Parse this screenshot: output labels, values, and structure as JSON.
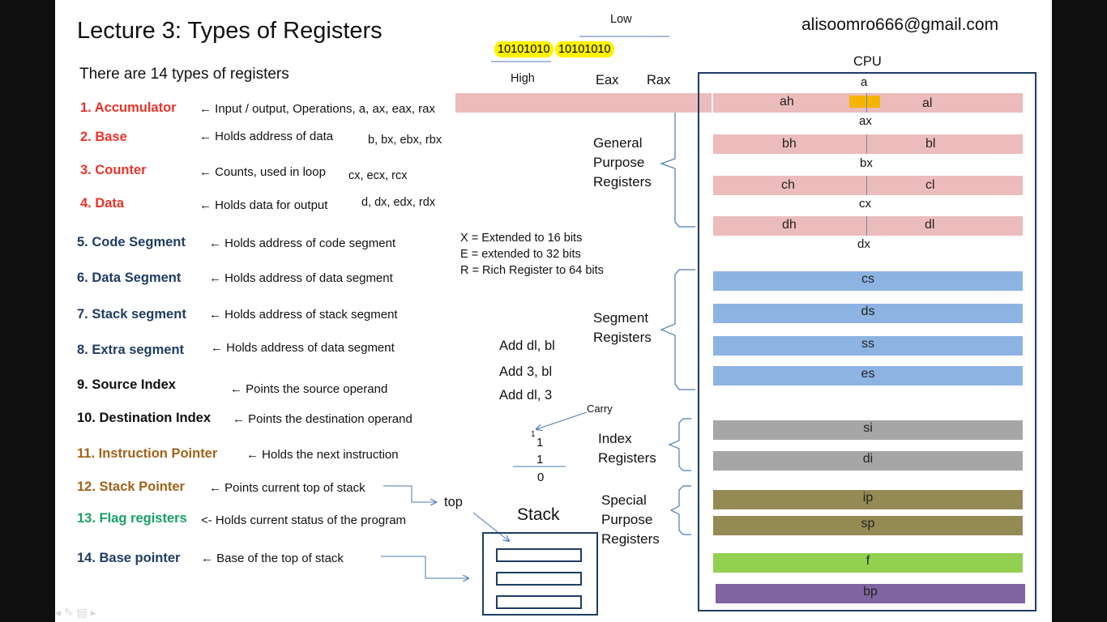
{
  "title": "Lecture 3: Types of Registers",
  "email": "alisoomro666@gmail.com",
  "subtitle": "There are 14 types of registers",
  "registers": [
    {
      "name": "1. Accumulator",
      "desc": "← Input / output, Operations, a, ax, eax, rax",
      "extra": ""
    },
    {
      "name": "2. Base",
      "desc": "← Holds address of data",
      "extra": "b, bx, ebx, rbx"
    },
    {
      "name": "3. Counter",
      "desc": "← Counts, used in loop",
      "extra": "cx, ecx, rcx"
    },
    {
      "name": "4. Data",
      "desc": "← Holds data for output",
      "extra": "d, dx, edx, rdx"
    },
    {
      "name": "5. Code Segment",
      "desc": "← Holds address of code segment",
      "extra": ""
    },
    {
      "name": "6. Data Segment",
      "desc": "← Holds address of data segment",
      "extra": ""
    },
    {
      "name": "7. Stack segment",
      "desc": "← Holds address of stack segment",
      "extra": ""
    },
    {
      "name": "8. Extra segment",
      "desc": "← Holds address of data segment",
      "extra": ""
    },
    {
      "name": "9. Source Index",
      "desc": "← Points  the source operand",
      "extra": ""
    },
    {
      "name": "10. Destination Index",
      "desc": "← Points  the destination operand",
      "extra": ""
    },
    {
      "name": "11. Instruction Pointer",
      "desc": "← Holds the next instruction",
      "extra": ""
    },
    {
      "name": "12. Stack Pointer",
      "desc": "← Points current top of stack",
      "extra": ""
    },
    {
      "name": "13. Flag registers",
      "desc": "<- Holds current status of the  program",
      "extra": ""
    },
    {
      "name": "14. Base pointer",
      "desc": "← Base of the top of stack",
      "extra": ""
    }
  ],
  "bits": {
    "low_label": "Low",
    "high_label": "High",
    "high_byte": "10101010",
    "low_byte": "10101010",
    "eax": "Eax",
    "rax": "Rax"
  },
  "extensions": [
    "X = Extended to 16 bits",
    "E = extended to 32 bits",
    "R = Rich Register to 64 bits"
  ],
  "instructions": [
    "Add dl, bl",
    "Add 3, bl",
    "Add dl, 3"
  ],
  "addition": {
    "carry_label": "Carry",
    "carry": "1",
    "a": "1",
    "b": "1",
    "result": "0"
  },
  "groups": {
    "general": "General\nPurpose\nRegisters",
    "segment": "Segment\nRegisters",
    "index": "Index\nRegisters",
    "special": "Special\nPurpose\nRegisters"
  },
  "stack": {
    "label": "Stack",
    "top_label": "top"
  },
  "cpu": {
    "label": "CPU",
    "a": "a",
    "ax": "ax",
    "bx": "bx",
    "cx": "cx",
    "dx": "dx",
    "ah": "ah",
    "al": "al",
    "bh": "bh",
    "bl": "bl",
    "ch": "ch",
    "cl": "cl",
    "dh": "dh",
    "dl": "dl",
    "cs": "cs",
    "ds": "ds",
    "ss": "ss",
    "es": "es",
    "si": "si",
    "di": "di",
    "ip": "ip",
    "sp": "sp",
    "f": "f",
    "bp": "bp"
  },
  "colors": {
    "general": "#ecbcbc",
    "segment": "#8db3e2",
    "index": "#a6a6a6",
    "special": "#948a54",
    "flag": "#92d050",
    "base_pointer": "#8064a2",
    "highlight": "#fff200"
  }
}
